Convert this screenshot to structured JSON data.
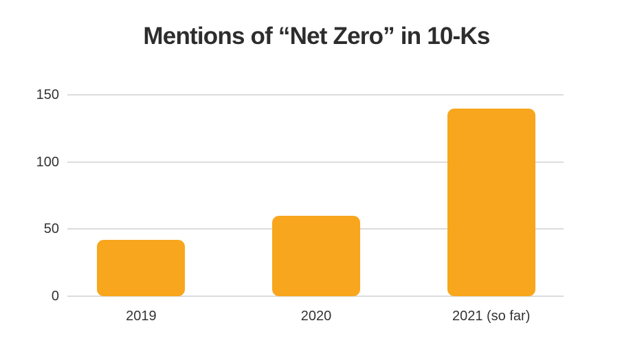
{
  "chart_data": {
    "type": "bar",
    "title": "Mentions of “Net Zero” in 10-Ks",
    "categories": [
      "2019",
      "2020",
      "2021 (so far)"
    ],
    "values": [
      42,
      60,
      140
    ],
    "yticks": [
      0,
      50,
      100,
      150
    ],
    "ylim": [
      0,
      150
    ],
    "xlabel": "",
    "ylabel": "",
    "grid": "horizontal-only",
    "legend": "none",
    "bar_color": "#F8A61D",
    "gridline_color": "#DCDCDC",
    "axis_text_color": "#333333",
    "title_color": "#2D2D2D",
    "background_color": "#FFFFFF"
  }
}
